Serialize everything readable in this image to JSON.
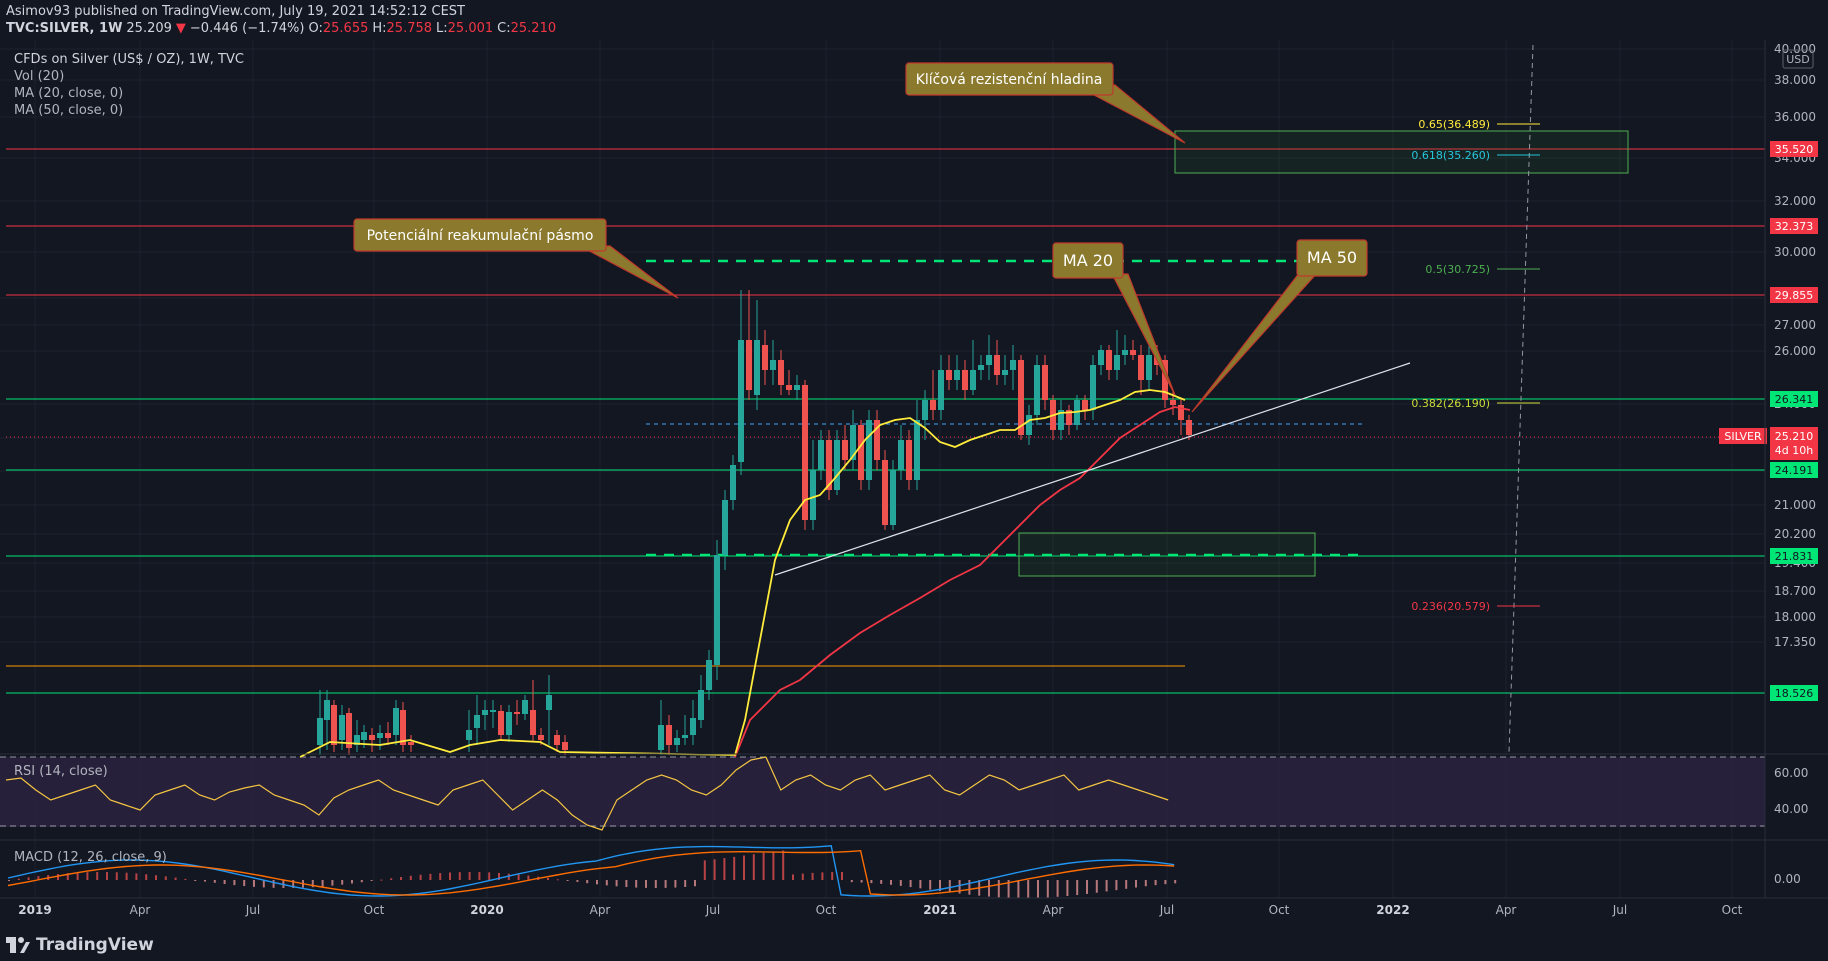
{
  "header": {
    "publish_line": "Asimov93 published on TradingView.com, July 19, 2021 14:52:12 CEST",
    "symbol": "TVC:SILVER, 1W",
    "last": "25.209",
    "change": "−0.446 (−1.74%)",
    "open_label": "O:",
    "open": "25.655",
    "high_label": "H:",
    "high": "25.758",
    "low_label": "L:",
    "low": "25.001",
    "close_label": "C:",
    "close": "25.210"
  },
  "legend": {
    "instrument": "CFDs on Silver (US$ / OZ), 1W, TVC",
    "vol": "Vol (20)",
    "ma20": "MA (20, close, 0)",
    "ma50": "MA (50, close, 0)",
    "rsi": "RSI (14, close)",
    "macd": "MACD (12, 26, close, 9)"
  },
  "price_axis": {
    "currency": "USD",
    "ticks": [
      "40.000",
      "38.000",
      "36.000",
      "34.000",
      "32.000",
      "30.000",
      "28.000",
      "27.000",
      "26.000",
      "24.000",
      "23.000",
      "22.000",
      "21.000",
      "20.200",
      "19.400",
      "18.700",
      "18.000",
      "17.350"
    ],
    "top_clip": "40.000"
  },
  "x_axis": {
    "labels": [
      "2019",
      "Apr",
      "Jul",
      "Oct",
      "2020",
      "Apr",
      "Jul",
      "Oct",
      "2021",
      "Apr",
      "Jul",
      "Oct",
      "2022",
      "Apr",
      "Jul",
      "Oct"
    ]
  },
  "levels": [
    {
      "label": "35.520",
      "color": "#f23645",
      "kind": "red"
    },
    {
      "label": "32.373",
      "color": "#f23645",
      "kind": "red"
    },
    {
      "label": "29.855",
      "color": "#f23645",
      "kind": "red"
    },
    {
      "label": "26.341",
      "color": "#00e676",
      "kind": "green"
    },
    {
      "label": "24.191",
      "color": "#00e676",
      "kind": "green"
    },
    {
      "label": "21.831",
      "color": "#00e676",
      "kind": "green"
    },
    {
      "label": "18.526",
      "color": "#00e676",
      "kind": "green"
    }
  ],
  "current_price": {
    "symbol": "SILVER",
    "price": "25.210",
    "countdown": "4d 10h",
    "color": "#f23645"
  },
  "fibonacci": [
    {
      "label": "0.65(36.489)",
      "color": "#ffeb3b"
    },
    {
      "label": "0.618(35.260)",
      "color": "#26c6da"
    },
    {
      "label": "0.5(30.725)",
      "color": "#4caf50"
    },
    {
      "label": "0.382(26.190)",
      "color": "#cddc39"
    },
    {
      "label": "0.236(20.579)",
      "color": "#f23645"
    }
  ],
  "callouts": {
    "resistance": "Klíčová rezistenční hladina",
    "reaccumulation": "Potenciální reakumulační pásmo",
    "ma20": "MA 20",
    "ma50": "MA 50"
  },
  "rsi_axis": [
    "60.00",
    "40.00"
  ],
  "macd_axis": [
    "0.00"
  ],
  "footer": {
    "brand": "TradingView"
  },
  "colors": {
    "background": "#131722",
    "up": "#26a69a",
    "down": "#ef5350",
    "ma20": "#ffeb3b",
    "ma50": "#f23645",
    "rsi_line": "#f5c542",
    "rsi_band": "#2a2240",
    "callout_bg": "#8b7a2d",
    "callout_border": "#c0392b"
  }
}
